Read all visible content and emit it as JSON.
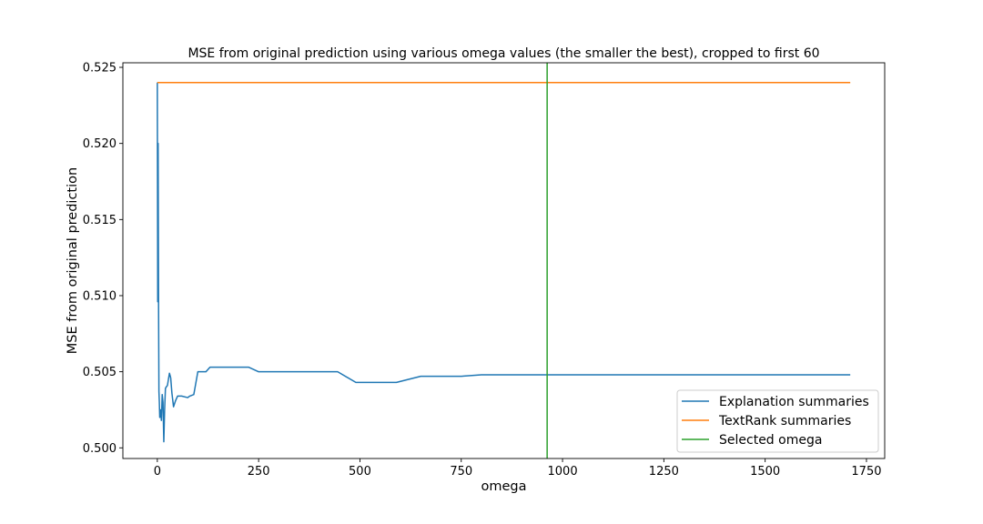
{
  "chart_data": {
    "type": "line",
    "title": "MSE from original prediction using various omega values (the smaller the best), cropped to first 60",
    "xlabel": "omega",
    "ylabel": "MSE from original prediction",
    "xlim": [
      -85,
      1795
    ],
    "ylim": [
      0.4993,
      0.5253
    ],
    "xticks": [
      0,
      250,
      500,
      750,
      1000,
      1250,
      1500,
      1750
    ],
    "yticks": [
      0.5,
      0.505,
      0.51,
      0.515,
      0.52,
      0.525
    ],
    "ytick_labels": [
      "0.500",
      "0.505",
      "0.510",
      "0.515",
      "0.520",
      "0.525"
    ],
    "grid": false,
    "legend_position": "lower-right",
    "series": [
      {
        "name": "Explanation summaries",
        "color": "#1f77b4",
        "x": [
          0,
          1,
          2,
          3,
          4,
          5,
          6,
          8,
          10,
          12,
          14,
          16,
          18,
          20,
          22,
          25,
          28,
          30,
          33,
          36,
          40,
          45,
          50,
          60,
          75,
          80,
          90,
          100,
          120,
          130,
          150,
          200,
          225,
          250,
          300,
          350,
          400,
          445,
          490,
          540,
          590,
          650,
          700,
          750,
          800,
          900,
          1000,
          1100,
          1200,
          1300,
          1400,
          1500,
          1600,
          1710
        ],
        "y": [
          0.524,
          0.5096,
          0.52,
          0.5098,
          0.5037,
          0.503,
          0.502,
          0.5025,
          0.5018,
          0.5035,
          0.503,
          0.5004,
          0.5025,
          0.5039,
          0.504,
          0.5041,
          0.5046,
          0.5049,
          0.5046,
          0.5036,
          0.5027,
          0.5031,
          0.5034,
          0.5034,
          0.5033,
          0.5034,
          0.5035,
          0.505,
          0.505,
          0.5053,
          0.5053,
          0.5053,
          0.5053,
          0.505,
          0.505,
          0.505,
          0.505,
          0.505,
          0.5043,
          0.5043,
          0.5043,
          0.5047,
          0.5047,
          0.5047,
          0.5048,
          0.5048,
          0.5048,
          0.5048,
          0.5048,
          0.5048,
          0.5048,
          0.5048,
          0.5048,
          0.5048
        ]
      },
      {
        "name": "TextRank summaries",
        "color": "#ff7f0e",
        "x": [
          0,
          1710
        ],
        "y": [
          0.524,
          0.524
        ]
      },
      {
        "name": "Selected omega",
        "color": "#2ca02c",
        "vline_x": 962
      }
    ]
  }
}
